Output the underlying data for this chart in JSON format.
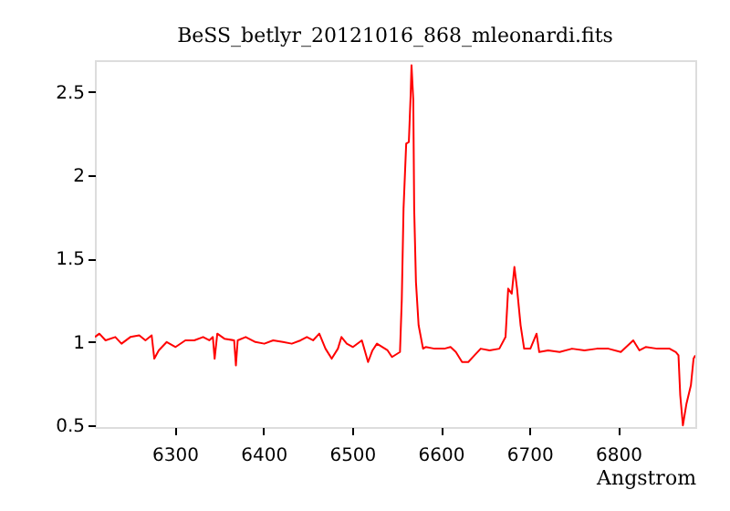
{
  "chart_data": {
    "type": "line",
    "title": "BeSS_betlyr_20121016_868_mleonardi.fits",
    "xlabel": "Angstrom",
    "x": [
      6210,
      6215,
      6222,
      6233,
      6240,
      6250,
      6260,
      6267,
      6274,
      6277,
      6282,
      6291,
      6301,
      6312,
      6322,
      6332,
      6339,
      6343,
      6345,
      6348,
      6356,
      6367,
      6369,
      6371,
      6380,
      6391,
      6401,
      6411,
      6422,
      6432,
      6442,
      6449,
      6456,
      6463,
      6470,
      6477,
      6484,
      6488,
      6494,
      6501,
      6511,
      6518,
      6523,
      6528,
      6540,
      6545,
      6554,
      6556,
      6558,
      6561,
      6564,
      6566,
      6567,
      6569,
      6570,
      6572,
      6575,
      6580,
      6583,
      6593,
      6604,
      6611,
      6617,
      6624,
      6631,
      6638,
      6645,
      6655,
      6666,
      6673,
      6676,
      6680,
      6683,
      6686,
      6690,
      6694,
      6701,
      6708,
      6711,
      6721,
      6734,
      6748,
      6762,
      6776,
      6789,
      6803,
      6817,
      6824,
      6831,
      6844,
      6858,
      6865,
      6868,
      6870,
      6873,
      6877,
      6882,
      6885,
      6887
    ],
    "series": [
      {
        "color": "#ff0000",
        "values": [
          1.03,
          1.05,
          1.01,
          1.03,
          0.99,
          1.03,
          1.04,
          1.01,
          1.04,
          0.9,
          0.95,
          1.0,
          0.97,
          1.01,
          1.01,
          1.03,
          1.01,
          1.03,
          0.9,
          1.05,
          1.02,
          1.01,
          0.86,
          1.01,
          1.03,
          1.0,
          0.99,
          1.01,
          1.0,
          0.99,
          1.01,
          1.03,
          1.01,
          1.05,
          0.96,
          0.9,
          0.96,
          1.03,
          0.99,
          0.97,
          1.01,
          0.88,
          0.95,
          0.99,
          0.95,
          0.91,
          0.94,
          1.25,
          1.8,
          2.19,
          2.2,
          2.48,
          2.66,
          2.45,
          1.8,
          1.36,
          1.1,
          0.96,
          0.97,
          0.96,
          0.96,
          0.97,
          0.94,
          0.88,
          0.88,
          0.92,
          0.96,
          0.95,
          0.96,
          1.03,
          1.32,
          1.29,
          1.45,
          1.32,
          1.1,
          0.96,
          0.96,
          1.05,
          0.94,
          0.95,
          0.94,
          0.96,
          0.95,
          0.96,
          0.96,
          0.94,
          1.01,
          0.95,
          0.97,
          0.96,
          0.96,
          0.94,
          0.92,
          0.68,
          0.5,
          0.63,
          0.74,
          0.9,
          0.92
        ]
      }
    ],
    "xlim": [
      6210,
      6887
    ],
    "ylim": [
      0.49,
      2.69
    ],
    "xticks": [
      6300,
      6400,
      6500,
      6600,
      6700,
      6800
    ],
    "yticks": [
      0.5,
      1,
      1.5,
      2,
      2.5
    ],
    "grid": false,
    "legend": false,
    "marker": "none",
    "line_style": "solid"
  }
}
